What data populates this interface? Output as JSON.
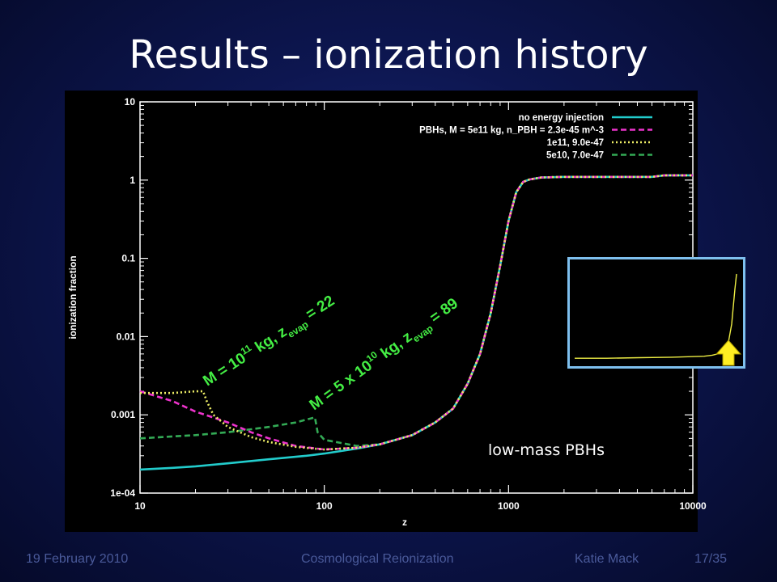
{
  "slide": {
    "title": "Results – ionization history",
    "caption": "low-mass PBHs",
    "footer": {
      "date": "19 February 2010",
      "topic": "Cosmological Reionization",
      "author": "Katie Mack",
      "page": "17/35"
    },
    "inset_arrow_color": "#ffee22"
  },
  "chart_data": {
    "type": "line",
    "xlabel": "z",
    "ylabel": "ionization fraction",
    "x_scale": "log",
    "y_scale": "log",
    "xlim": [
      10,
      10000
    ],
    "ylim": [
      0.0001,
      10
    ],
    "x_ticks": [
      "10",
      "100",
      "1000",
      "10000"
    ],
    "y_ticks": [
      "1e-04",
      "0.001",
      "0.01",
      "0.1",
      "1",
      "10"
    ],
    "legend_position": "top-right",
    "series": [
      {
        "name": "no energy injection",
        "color": "#22cccc",
        "style": "solid",
        "x": [
          10,
          15,
          20,
          30,
          50,
          80,
          100,
          150,
          200,
          300,
          400,
          500,
          600,
          700,
          800,
          900,
          1000,
          1100,
          1200,
          1300,
          1500,
          2000,
          3000,
          5000,
          6000,
          7000,
          10000
        ],
        "y": [
          0.0002,
          0.00021,
          0.00022,
          0.00024,
          0.00027,
          0.0003,
          0.00032,
          0.00037,
          0.00042,
          0.00055,
          0.0008,
          0.0012,
          0.0025,
          0.006,
          0.02,
          0.08,
          0.3,
          0.7,
          0.95,
          1.02,
          1.08,
          1.1,
          1.1,
          1.1,
          1.1,
          1.15,
          1.15
        ]
      },
      {
        "name": "PBHs, M = 5e11 kg, n_PBH = 2.3e-45 m^-3",
        "color": "#ee33cc",
        "style": "dashed",
        "x": [
          10,
          15,
          20,
          30,
          40,
          50,
          70,
          100,
          150,
          200,
          300,
          400,
          500,
          600,
          700,
          800,
          900,
          1000,
          1100,
          1200,
          1300,
          1500,
          2000,
          3000,
          5000,
          6000,
          7000,
          10000
        ],
        "y": [
          0.002,
          0.0015,
          0.0011,
          0.0008,
          0.0006,
          0.0005,
          0.0004,
          0.00036,
          0.00038,
          0.00042,
          0.00055,
          0.0008,
          0.0012,
          0.0025,
          0.006,
          0.02,
          0.08,
          0.3,
          0.7,
          0.95,
          1.02,
          1.08,
          1.1,
          1.1,
          1.1,
          1.1,
          1.15,
          1.15
        ]
      },
      {
        "name": "1e11, 9.0e-47",
        "color": "#eeee66",
        "style": "dotted",
        "x": [
          10,
          15,
          20,
          22,
          23,
          25,
          30,
          40,
          50,
          70,
          100,
          150,
          200,
          300,
          400,
          500,
          600,
          700,
          800,
          900,
          1000,
          1100,
          1200,
          1300,
          1500,
          2000,
          3000,
          5000,
          6000,
          7000,
          10000
        ],
        "y": [
          0.0019,
          0.0019,
          0.002,
          0.002,
          0.0015,
          0.001,
          0.0007,
          0.00052,
          0.00045,
          0.00039,
          0.00036,
          0.00038,
          0.00042,
          0.00055,
          0.0008,
          0.0012,
          0.0025,
          0.006,
          0.02,
          0.08,
          0.3,
          0.7,
          0.95,
          1.02,
          1.08,
          1.1,
          1.1,
          1.1,
          1.1,
          1.15,
          1.15
        ]
      },
      {
        "name": "5e10, 7.0e-47",
        "color": "#33aa55",
        "style": "dashed",
        "x": [
          10,
          20,
          30,
          50,
          70,
          89,
          92,
          100,
          150,
          200,
          300,
          400,
          500,
          600,
          700,
          800,
          900,
          1000,
          1100,
          1200,
          1300,
          1500,
          2000,
          3000,
          5000,
          6000,
          7000,
          10000
        ],
        "y": [
          0.0005,
          0.00055,
          0.0006,
          0.0007,
          0.0008,
          0.00093,
          0.0006,
          0.00048,
          0.0004,
          0.00042,
          0.00055,
          0.0008,
          0.0012,
          0.0025,
          0.006,
          0.02,
          0.08,
          0.3,
          0.7,
          0.95,
          1.02,
          1.08,
          1.1,
          1.1,
          1.1,
          1.1,
          1.15,
          1.15
        ]
      }
    ],
    "annotations": [
      {
        "text_main": "M = 10",
        "sup": "11",
        "text_mid": " kg, z",
        "sub": "evap",
        "text_end": " = 22"
      },
      {
        "text_main": "M = 5 x 10",
        "sup": "10",
        "text_mid": " kg, z",
        "sub": "evap",
        "text_end": " = 89"
      }
    ]
  },
  "inset": {
    "line_color": "#eeee44",
    "x": [
      0,
      0.2,
      0.4,
      0.6,
      0.7,
      0.8,
      0.85,
      0.9,
      0.93,
      0.95,
      0.97,
      0.99,
      1.0
    ],
    "y": [
      0.16,
      0.16,
      0.165,
      0.17,
      0.175,
      0.18,
      0.19,
      0.21,
      0.25,
      0.32,
      0.5,
      0.85,
      1.0
    ]
  }
}
